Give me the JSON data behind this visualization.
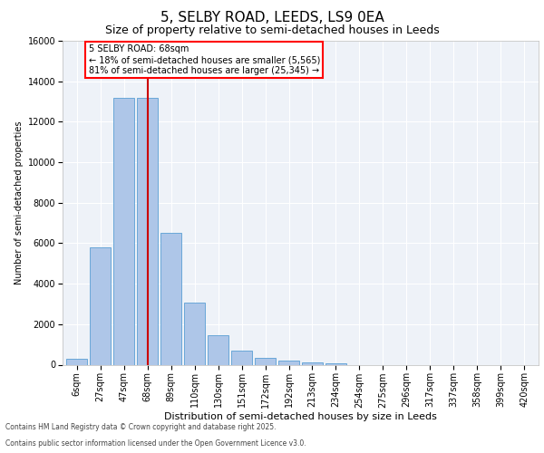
{
  "title1": "5, SELBY ROAD, LEEDS, LS9 0EA",
  "title2": "Size of property relative to semi-detached houses in Leeds",
  "xlabel": "Distribution of semi-detached houses by size in Leeds",
  "ylabel": "Number of semi-detached properties",
  "categories": [
    "6sqm",
    "27sqm",
    "47sqm",
    "68sqm",
    "89sqm",
    "110sqm",
    "130sqm",
    "151sqm",
    "172sqm",
    "192sqm",
    "213sqm",
    "234sqm",
    "254sqm",
    "275sqm",
    "296sqm",
    "317sqm",
    "337sqm",
    "358sqm",
    "399sqm",
    "420sqm"
  ],
  "values": [
    300,
    5800,
    13200,
    13200,
    6500,
    3050,
    1450,
    680,
    340,
    220,
    120,
    50,
    0,
    0,
    0,
    0,
    0,
    0,
    0,
    0
  ],
  "bar_color": "#aec6e8",
  "bar_edge_color": "#5a9fd4",
  "marker_index": 3,
  "red_line_color": "#cc0000",
  "annotation_text": "5 SELBY ROAD: 68sqm\n← 18% of semi-detached houses are smaller (5,565)\n81% of semi-detached houses are larger (25,345) →",
  "footnote1": "Contains HM Land Registry data © Crown copyright and database right 2025.",
  "footnote2": "Contains public sector information licensed under the Open Government Licence v3.0.",
  "ylim": [
    0,
    16000
  ],
  "yticks": [
    0,
    2000,
    4000,
    6000,
    8000,
    10000,
    12000,
    14000,
    16000
  ],
  "bg_color": "#eef2f8",
  "fig_bg": "#ffffff",
  "grid_color": "#ffffff",
  "title1_fontsize": 11,
  "title2_fontsize": 9,
  "xlabel_fontsize": 8,
  "ylabel_fontsize": 7,
  "tick_fontsize": 7,
  "annot_fontsize": 7
}
